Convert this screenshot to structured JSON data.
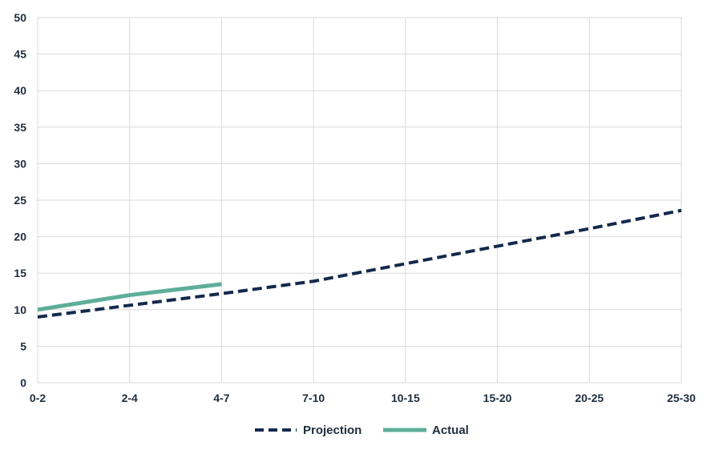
{
  "chart_data": {
    "type": "line",
    "categories": [
      "0-2",
      "2-4",
      "4-7",
      "7-10",
      "10-15",
      "15-20",
      "20-25",
      "25-30"
    ],
    "y_ticks": [
      "0",
      "5",
      "10",
      "15",
      "20",
      "25",
      "30",
      "35",
      "40",
      "45",
      "50"
    ],
    "ylim": [
      0,
      50
    ],
    "grid": true,
    "legend_position": "bottom",
    "series": [
      {
        "name": "Projection",
        "style": "dashed",
        "color": "#13294b",
        "values": [
          9,
          10.6,
          12.2,
          13.9,
          16.3,
          18.7,
          21.1,
          23.6
        ]
      },
      {
        "name": "Actual",
        "style": "solid",
        "color": "#5eae99",
        "values": [
          10,
          12,
          13.5,
          null,
          null,
          null,
          null,
          null
        ]
      }
    ]
  }
}
